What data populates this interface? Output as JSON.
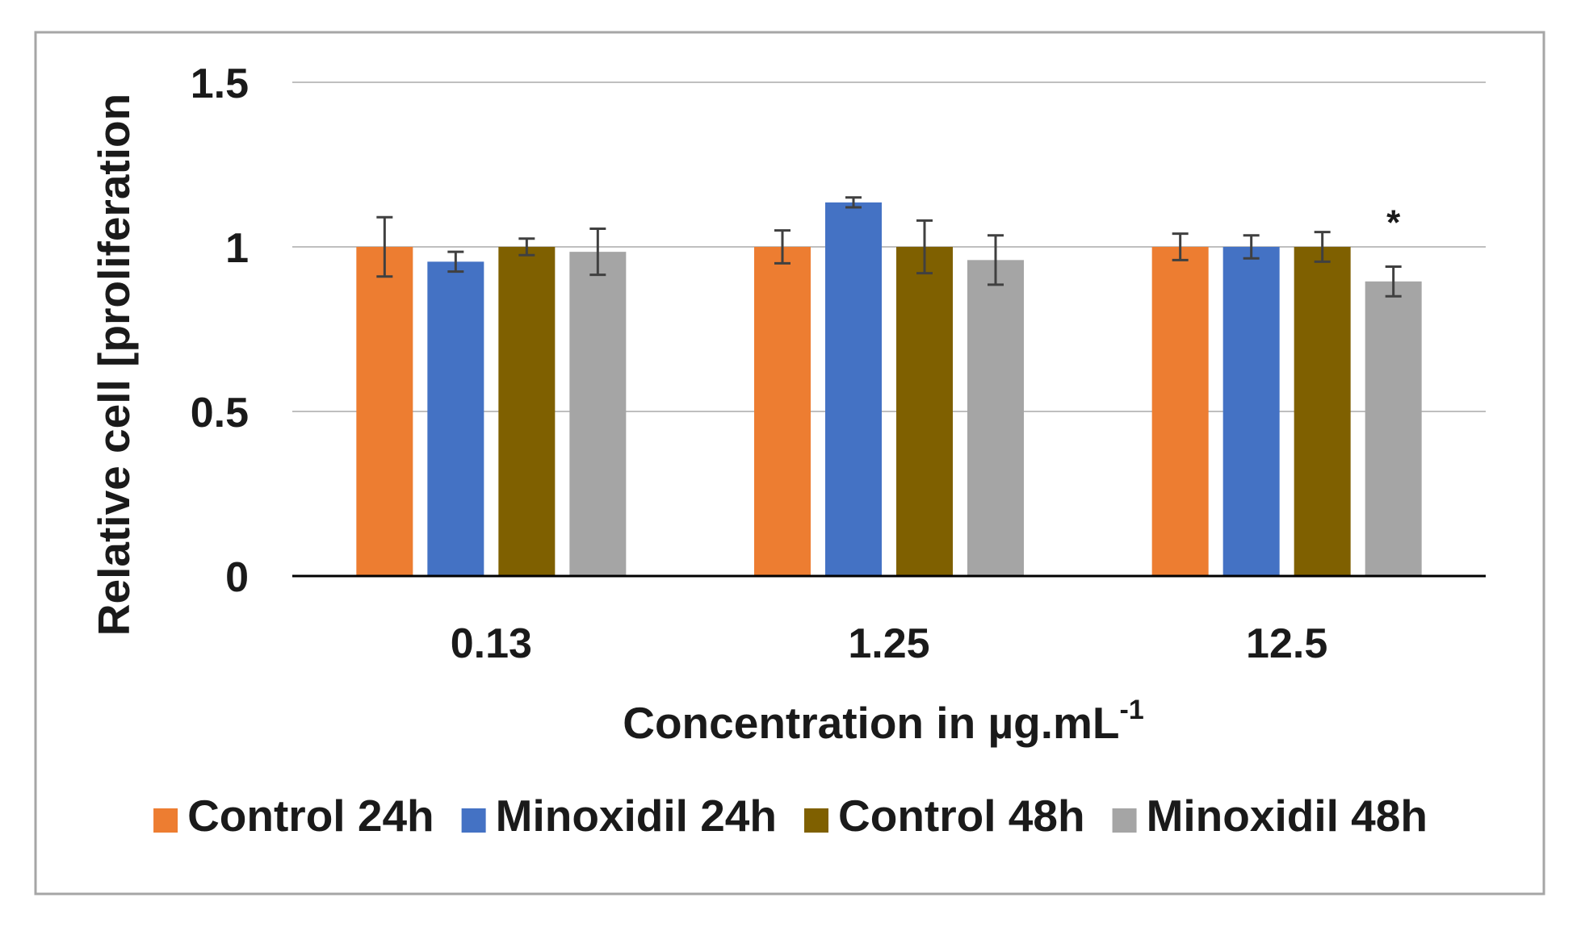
{
  "chart_data": {
    "type": "bar",
    "title": "",
    "xlabel": "Concentration in µg.mL",
    "xlabel_superscript": "-1",
    "ylabel": "Relative cell [proliferation",
    "ylim": [
      0,
      1.5
    ],
    "yticks": [
      0,
      0.5,
      1,
      1.5
    ],
    "ytick_labels": [
      "0",
      "0.5",
      "1",
      "1.5"
    ],
    "grid": true,
    "legend_position": "bottom",
    "categories": [
      "0.13",
      "1.25",
      "12.5"
    ],
    "series": [
      {
        "name": "Control 24h",
        "color": "#ED7D31",
        "values": [
          1.0,
          1.0,
          1.0
        ],
        "errors": [
          0.09,
          0.05,
          0.04
        ]
      },
      {
        "name": "Minoxidil 24h",
        "color": "#4472C4",
        "values": [
          0.955,
          1.135,
          1.0
        ],
        "errors": [
          0.03,
          0.015,
          0.035
        ]
      },
      {
        "name": "Control 48h",
        "color": "#7F6000",
        "values": [
          1.0,
          1.0,
          1.0
        ],
        "errors": [
          0.025,
          0.08,
          0.045
        ]
      },
      {
        "name": "Minoxidil 48h",
        "color": "#A5A5A5",
        "values": [
          0.985,
          0.96,
          0.895
        ],
        "errors": [
          0.07,
          0.075,
          0.045
        ]
      }
    ],
    "annotations": [
      {
        "category": "12.5",
        "series": "Minoxidil 48h",
        "text": "*"
      }
    ]
  }
}
